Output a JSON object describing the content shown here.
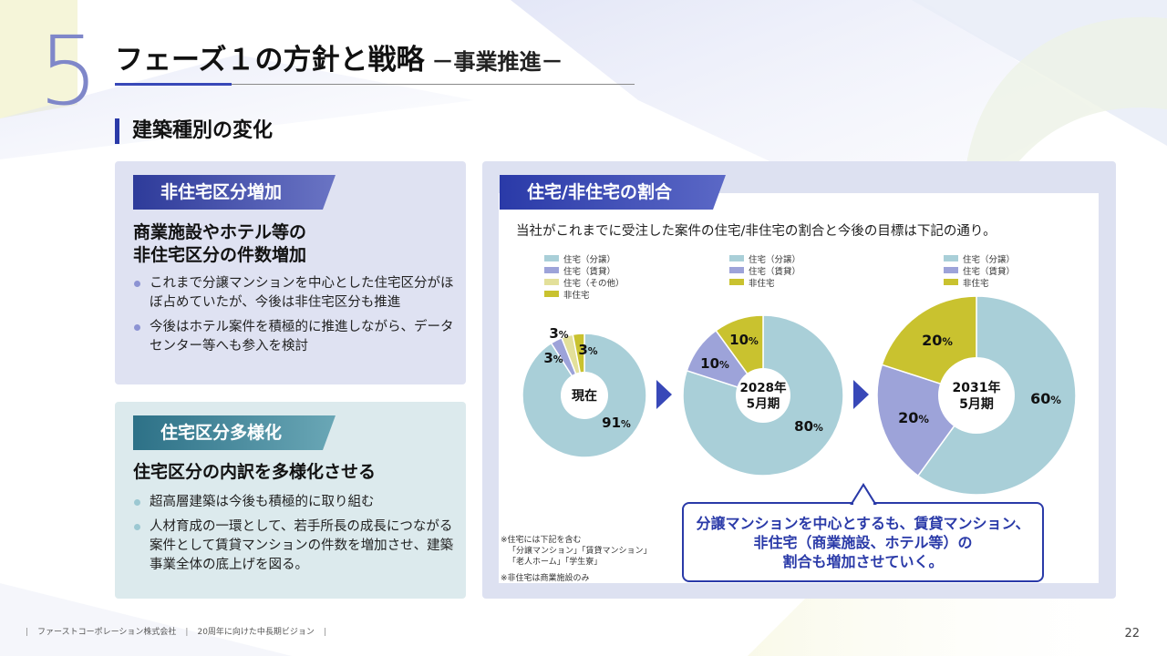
{
  "slide": {
    "number": "5",
    "title": "フェーズ１の方針と戦略",
    "subtitle": "－事業推進－",
    "section_heading": "建築種別の変化"
  },
  "card_nonresidential": {
    "tag": "非住宅区分増加",
    "heading_line1": "商業施設やホテル等の",
    "heading_line2": "非住宅区分の件数増加",
    "bullets": [
      "これまで分譲マンションを中心とした住宅区分がほぼ占めていたが、今後は非住宅区分も推進",
      "今後はホテル案件を積極的に推進しながら、データセンター等へも参入を検討"
    ]
  },
  "card_residential": {
    "tag": "住宅区分多様化",
    "heading": "住宅区分の内訳を多様化させる",
    "bullets": [
      "超高層建築は今後も積極的に取り組む",
      "人材育成の一環として、若手所長の成長につながる案件として賃貸マンションの件数を増加させ、建築事業全体の底上げを図る。"
    ]
  },
  "ratio_panel": {
    "tag": "住宅/非住宅の割合",
    "intro": "当社がこれまでに受注した案件の住宅/非住宅の割合と今後の目標は下記の通り。",
    "callout_line1": "分譲マンションを中心とするも、賃貸マンション、",
    "callout_line2": "非住宅（商業施設、ホテル等）の",
    "callout_line3": "割合も増加させていく。",
    "note_1_line1": "※住宅には下記を含む",
    "note_1_line2": "「分譲マンション」「賃貸マンション」",
    "note_1_line3": "「老人ホーム」「学生寮」",
    "note_2": "※非住宅は商業施設のみ"
  },
  "colors": {
    "condo": "#a9cfd8",
    "rental": "#9da3d9",
    "other_residential": "#e3e09a",
    "nonresidential": "#c9c22f",
    "accent": "#2a3aa8",
    "arrow": "#3848b8"
  },
  "chart_data": [
    {
      "type": "pie",
      "center_label": [
        "現在"
      ],
      "series": [
        {
          "name": "住宅（分譲）",
          "value": 91,
          "label": "91%"
        },
        {
          "name": "住宅（賃貸）",
          "value": 3,
          "label": "3%"
        },
        {
          "name": "住宅（その他）",
          "value": 3,
          "label": "3%"
        },
        {
          "name": "非住宅",
          "value": 3,
          "label": "3%"
        }
      ]
    },
    {
      "type": "pie",
      "center_label": [
        "2028年",
        "5月期"
      ],
      "series": [
        {
          "name": "住宅（分譲）",
          "value": 80,
          "label": "80%"
        },
        {
          "name": "住宅（賃貸）",
          "value": 10,
          "label": "10%"
        },
        {
          "name": "非住宅",
          "value": 10,
          "label": "10%"
        }
      ]
    },
    {
      "type": "pie",
      "center_label": [
        "2031年",
        "5月期"
      ],
      "series": [
        {
          "name": "住宅（分譲）",
          "value": 60,
          "label": "60%"
        },
        {
          "name": "住宅（賃貸）",
          "value": 20,
          "label": "20%"
        },
        {
          "name": "非住宅",
          "value": 20,
          "label": "20%"
        }
      ]
    }
  ],
  "footer": {
    "company": "ファーストコーポレーション株式会社",
    "vision": "20周年に向けた中長期ビジョン",
    "page": "22"
  }
}
